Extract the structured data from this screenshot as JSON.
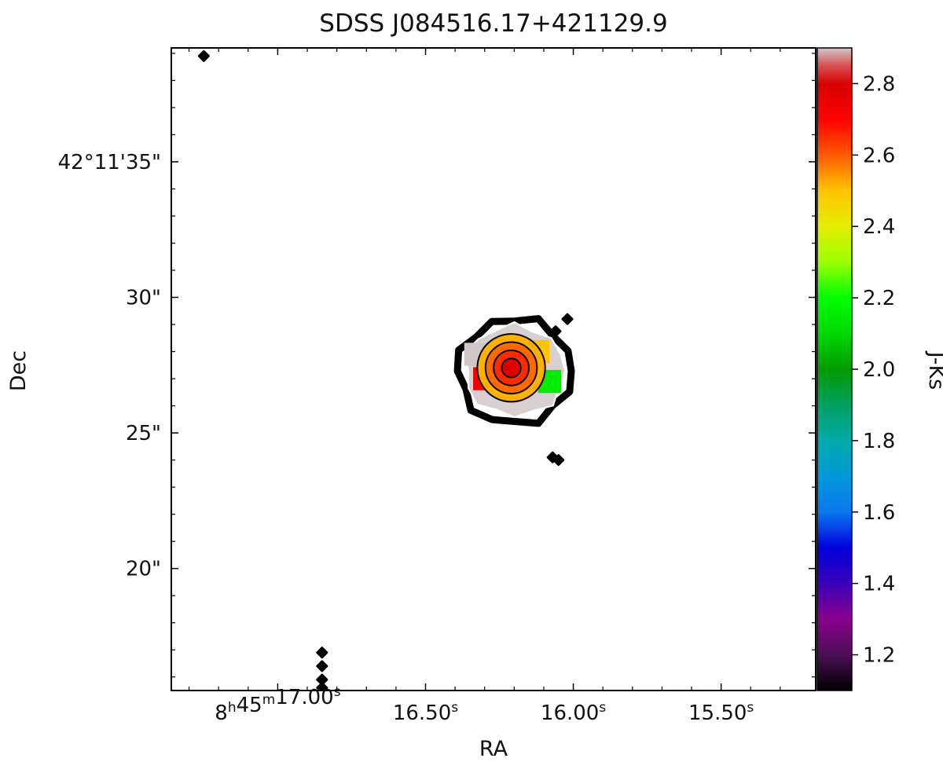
{
  "chart_data": {
    "type": "heatmap",
    "title": "SDSS J084516.17+421129.9",
    "xlabel": "RA",
    "ylabel": "Dec",
    "x_ticks": [
      {
        "ra_s": 17.0,
        "prefix": "8",
        "h": "h",
        "mid": "45",
        "m": "m",
        "value": "17.00",
        "s": "s"
      },
      {
        "ra_s": 16.5,
        "prefix": "",
        "h": "",
        "mid": "",
        "m": "",
        "value": "16.50",
        "s": "s"
      },
      {
        "ra_s": 16.0,
        "prefix": "",
        "h": "",
        "mid": "",
        "m": "",
        "value": "16.00",
        "s": "s"
      },
      {
        "ra_s": 15.5,
        "prefix": "",
        "h": "",
        "mid": "",
        "m": "",
        "value": "15.50",
        "s": "s"
      }
    ],
    "xlim_ra_s": [
      17.36,
      15.18
    ],
    "y_ticks": [
      {
        "dec_arcsec": 35,
        "label": "42°11'35\""
      },
      {
        "dec_arcsec": 30,
        "label": "30\""
      },
      {
        "dec_arcsec": 25,
        "label": "25\""
      },
      {
        "dec_arcsec": 20,
        "label": "20\""
      }
    ],
    "ylim_dec_arcsec": [
      15.5,
      39.2
    ],
    "colorbar": {
      "label": "J-Ks",
      "range": [
        1.1,
        2.9
      ],
      "ticks": [
        1.2,
        1.4,
        1.6,
        1.8,
        2.0,
        2.2,
        2.4,
        2.6,
        2.8
      ],
      "colormap": [
        {
          "v": 1.1,
          "color": "#000000"
        },
        {
          "v": 1.2,
          "color": "#4b0f55"
        },
        {
          "v": 1.3,
          "color": "#8a008e"
        },
        {
          "v": 1.4,
          "color": "#3a00b8"
        },
        {
          "v": 1.5,
          "color": "#0000dc"
        },
        {
          "v": 1.6,
          "color": "#0a78f0"
        },
        {
          "v": 1.7,
          "color": "#0098d8"
        },
        {
          "v": 1.8,
          "color": "#00aaa8"
        },
        {
          "v": 1.9,
          "color": "#00a060"
        },
        {
          "v": 2.0,
          "color": "#009a00"
        },
        {
          "v": 2.1,
          "color": "#00d800"
        },
        {
          "v": 2.2,
          "color": "#00ff00"
        },
        {
          "v": 2.3,
          "color": "#9cff00"
        },
        {
          "v": 2.4,
          "color": "#e4ee00"
        },
        {
          "v": 2.5,
          "color": "#ffc400"
        },
        {
          "v": 2.6,
          "color": "#ff5a00"
        },
        {
          "v": 2.7,
          "color": "#ff0000"
        },
        {
          "v": 2.8,
          "color": "#d80000"
        },
        {
          "v": 2.85,
          "color": "#d85050"
        },
        {
          "v": 2.9,
          "color": "#d0c8c8"
        }
      ]
    },
    "source": {
      "ra_s": 16.21,
      "dec_arcsec": 27.4,
      "contour_radii_arcsec": [
        0.35,
        0.65,
        0.95,
        1.25
      ],
      "color_patches": [
        {
          "ra_s": 16.3,
          "dec_arcsec": 27.0,
          "jks": 2.72
        },
        {
          "ra_s": 16.26,
          "dec_arcsec": 27.6,
          "jks": 2.68
        },
        {
          "ra_s": 16.17,
          "dec_arcsec": 27.7,
          "jks": 2.55
        },
        {
          "ra_s": 16.2,
          "dec_arcsec": 26.9,
          "jks": 2.62
        },
        {
          "ra_s": 16.08,
          "dec_arcsec": 26.9,
          "jks": 2.15
        },
        {
          "ra_s": 16.12,
          "dec_arcsec": 28.0,
          "jks": 2.5
        },
        {
          "ra_s": 16.33,
          "dec_arcsec": 27.9,
          "jks": 2.9
        }
      ]
    },
    "blobs": [
      {
        "ra_s": 17.25,
        "dec_arcsec": 38.9
      },
      {
        "ra_s": 16.85,
        "dec_arcsec": 16.9
      },
      {
        "ra_s": 16.85,
        "dec_arcsec": 16.4
      },
      {
        "ra_s": 16.85,
        "dec_arcsec": 15.9
      },
      {
        "ra_s": 16.85,
        "dec_arcsec": 15.6
      },
      {
        "ra_s": 16.02,
        "dec_arcsec": 29.2
      },
      {
        "ra_s": 16.06,
        "dec_arcsec": 28.75
      },
      {
        "ra_s": 16.07,
        "dec_arcsec": 24.1
      },
      {
        "ra_s": 16.05,
        "dec_arcsec": 24.0
      }
    ]
  }
}
